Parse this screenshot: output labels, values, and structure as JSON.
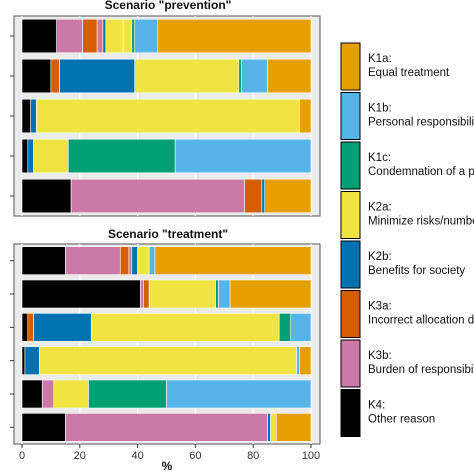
{
  "chart_data": [
    {
      "type": "bar",
      "orientation": "horizontal",
      "stacked": true,
      "title": "Scenario \"prevention\"",
      "xlabel": "",
      "xlim": [
        0,
        100
      ],
      "rows": [
        {
          "values": [
            12,
            9,
            5,
            2,
            1,
            0,
            0,
            6,
            3,
            1,
            8,
            53
          ]
        },
        {
          "values": [
            10,
            0,
            3,
            0,
            26,
            0,
            36,
            0,
            0,
            1,
            9,
            15
          ]
        },
        {
          "values": [
            3,
            0,
            0,
            0,
            2,
            0,
            91,
            0,
            0,
            0,
            0,
            4
          ]
        },
        {
          "values": [
            2,
            0,
            0,
            0,
            2,
            0,
            12,
            0,
            0,
            37,
            47,
            0
          ]
        },
        {
          "values": [
            17,
            60,
            6,
            0,
            1,
            0,
            0,
            0,
            0,
            0,
            0,
            16
          ]
        }
      ]
    },
    {
      "type": "bar",
      "orientation": "horizontal",
      "stacked": true,
      "title": "Scenario \"treatment\"",
      "xlabel": "%",
      "xlim": [
        0,
        100
      ],
      "xticks": [
        "0",
        "20",
        "40",
        "60",
        "80",
        "100"
      ],
      "rows": [
        {
          "values": [
            15,
            19,
            3,
            1,
            2,
            0,
            4,
            0,
            0,
            0,
            2,
            54
          ]
        },
        {
          "values": [
            41,
            1,
            2,
            0,
            0,
            0,
            23,
            0,
            0,
            1,
            4,
            28
          ]
        },
        {
          "values": [
            2,
            0,
            2,
            0,
            20,
            0,
            65,
            0,
            0,
            4,
            7,
            0
          ]
        },
        {
          "values": [
            1,
            0,
            0,
            0,
            5,
            0,
            89,
            0,
            0,
            0,
            1,
            4
          ]
        },
        {
          "values": [
            7,
            4,
            0,
            0,
            0,
            0,
            12,
            0,
            0,
            27,
            50,
            0
          ]
        },
        {
          "values": [
            15,
            70,
            0,
            0,
            1,
            0,
            2,
            0,
            0,
            0,
            0,
            12
          ]
        }
      ]
    }
  ],
  "segment_colors": [
    "#000000",
    "#cc79a7",
    "#d55e00",
    "#cc79a7",
    "#0072b2",
    "#0072b2",
    "#f0e442",
    "#f0e442",
    "#f0e442",
    "#009e73",
    "#56b4e9",
    "#e69f00"
  ],
  "legend": [
    {
      "code": "K1a:",
      "label": "Equal treatment",
      "color": "#e69f00"
    },
    {
      "code": "K1b:",
      "label": "Personal responsibili",
      "color": "#56b4e9"
    },
    {
      "code": "K1c:",
      "label": "Condemnation of a pe",
      "color": "#009e73"
    },
    {
      "code": "K2a:",
      "label": "Minimize risks/numbe",
      "color": "#f0e442"
    },
    {
      "code": "K2b:",
      "label": "Benefits for society",
      "color": "#0072b2"
    },
    {
      "code": "K3a:",
      "label": "Incorrect allocation d",
      "color": "#d55e00"
    },
    {
      "code": "K3b:",
      "label": "Burden of responsibil",
      "color": "#cc79a7"
    },
    {
      "code": "K4:",
      "label": "Other reason",
      "color": "#000000"
    }
  ]
}
